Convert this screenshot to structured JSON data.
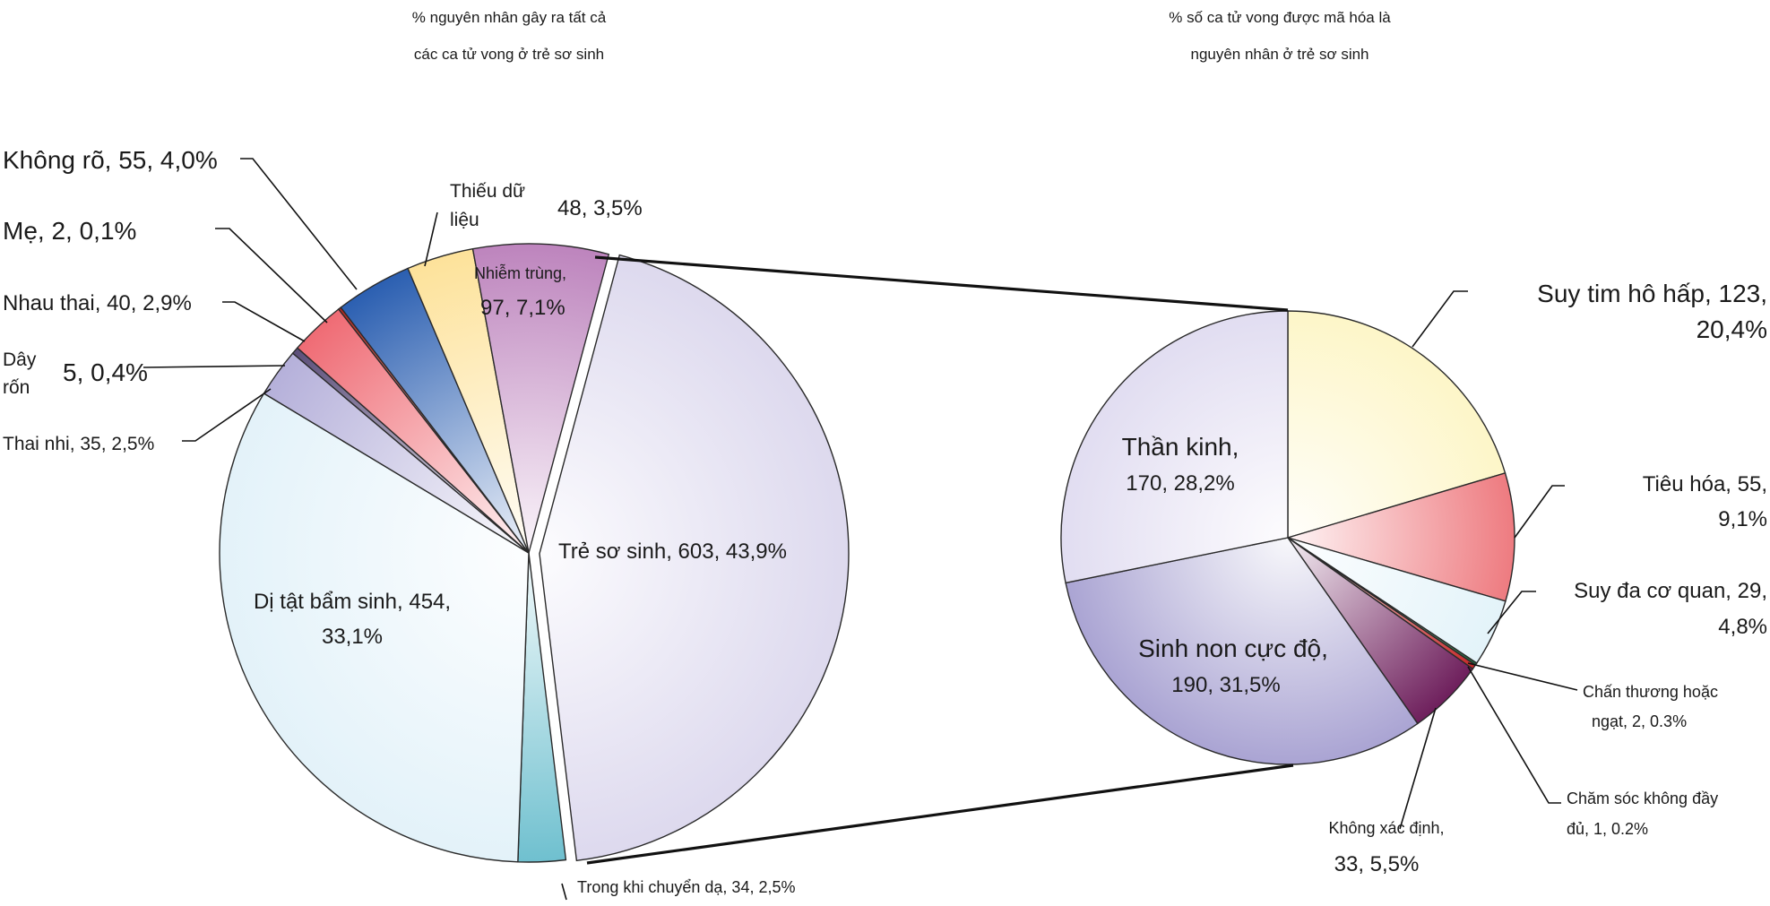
{
  "chart_data": [
    {
      "type": "pie",
      "title_lines": [
        "% nguyên nhân gây ra tất cả",
        "các ca tử vong ở trẻ sơ sinh"
      ],
      "slices": [
        {
          "key": "tre_so_sinh",
          "lines": [
            "Trẻ sơ sinh, 603, 43,9%"
          ],
          "count": 603,
          "percent": 43.9,
          "color": "#ddd9ee",
          "exploded": true
        },
        {
          "key": "chuyen_da",
          "lines": [
            "Trong khi chuyển dạ, 34, 2,5%"
          ],
          "count": 34,
          "percent": 2.5,
          "color": "#6fc0cf"
        },
        {
          "key": "di_tat",
          "lines": [
            "Dị tật bẩm sinh, 454,",
            "33,1%"
          ],
          "count": 454,
          "percent": 33.1,
          "color": "#e3f2f9"
        },
        {
          "key": "thai_nhi",
          "lines": [
            "Thai nhi, 35, 2,5%"
          ],
          "count": 35,
          "percent": 2.5,
          "color": "#b5b0da"
        },
        {
          "key": "day_ron",
          "lines": [
            "Dây",
            "rốn",
            "5, 0,4%"
          ],
          "count": 5,
          "percent": 0.4,
          "color": "#5c4f7a"
        },
        {
          "key": "nhau_thai",
          "lines": [
            "Nhau thai, 40, 2,9%"
          ],
          "count": 40,
          "percent": 2.9,
          "color": "#ef6b74"
        },
        {
          "key": "me",
          "lines": [
            "Mẹ, 2, 0,1%"
          ],
          "count": 2,
          "percent": 0.1,
          "color": "#b3261e"
        },
        {
          "key": "khong_ro",
          "lines": [
            "Không rõ, 55, 4,0%"
          ],
          "count": 55,
          "percent": 4.0,
          "color": "#2b5fb1"
        },
        {
          "key": "thieu_du_lieu",
          "lines": [
            "Thiếu dữ",
            "liệu",
            "48, 3,5%"
          ],
          "count": 48,
          "percent": 3.5,
          "color": "#fde29a"
        },
        {
          "key": "nhiem_trung",
          "lines": [
            "Nhiễm trùng,",
            "97, 7,1%"
          ],
          "count": 97,
          "percent": 7.1,
          "color": "#bd84bd"
        }
      ]
    },
    {
      "type": "pie",
      "title_lines": [
        "% số ca tử vong được mã hóa là",
        "nguyên nhân ở trẻ sơ sinh"
      ],
      "slices": [
        {
          "key": "suy_tim",
          "lines": [
            "Suy tim hô hấp, 123,",
            "20,4%"
          ],
          "count": 123,
          "percent": 20.4,
          "color": "#fdf6c8"
        },
        {
          "key": "tieu_hoa",
          "lines": [
            "Tiêu hóa, 55,",
            "9,1%"
          ],
          "count": 55,
          "percent": 9.1,
          "color": "#ee7b80"
        },
        {
          "key": "suy_da_co_quan",
          "lines": [
            "Suy đa cơ quan, 29,",
            "4,8%"
          ],
          "count": 29,
          "percent": 4.8,
          "color": "#e3f3f9"
        },
        {
          "key": "cham_soc",
          "lines": [
            "Chăm sóc không đầy",
            "đủ, 1, 0.2%"
          ],
          "count": 1,
          "percent": 0.2,
          "color": "#1f6b3c"
        },
        {
          "key": "chan_thuong",
          "lines": [
            "Chấn thương hoặc",
            "ngạt, 2, 0.3%"
          ],
          "count": 2,
          "percent": 0.3,
          "color": "#c62828"
        },
        {
          "key": "khong_xac_dinh",
          "lines": [
            "Không xác định,",
            "33, 5,5%"
          ],
          "count": 33,
          "percent": 5.5,
          "color": "#6e1f5c"
        },
        {
          "key": "sinh_non",
          "lines": [
            "Sinh non cực độ,",
            "190, 31,5%"
          ],
          "count": 190,
          "percent": 31.5,
          "color": "#aaa4d3"
        },
        {
          "key": "than_kinh",
          "lines": [
            "Thần kinh,",
            "170, 28,2%"
          ],
          "count": 170,
          "percent": 28.2,
          "color": "#e1ddf1"
        }
      ]
    }
  ]
}
